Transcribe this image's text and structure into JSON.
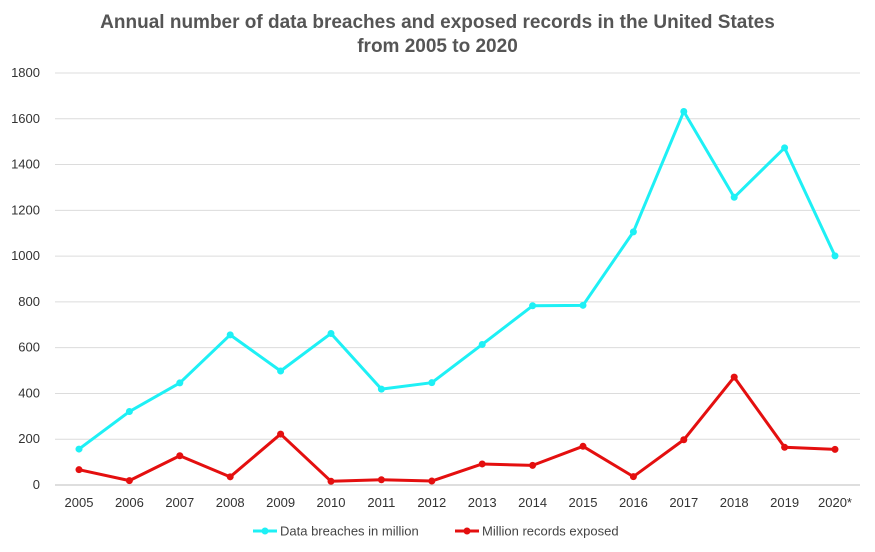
{
  "chart_data": {
    "type": "line",
    "title_line1": "Annual number of data breaches and exposed records in the United States",
    "title_line2": "from 2005 to 2020",
    "xlabel": "",
    "ylabel": "",
    "categories": [
      "2005",
      "2006",
      "2007",
      "2008",
      "2009",
      "2010",
      "2011",
      "2012",
      "2013",
      "2014",
      "2015",
      "2016",
      "2017",
      "2018",
      "2019",
      "2020*"
    ],
    "ylim": [
      0,
      1800
    ],
    "yticks": [
      0,
      200,
      400,
      600,
      800,
      1000,
      1200,
      1400,
      1600,
      1800
    ],
    "grid": true,
    "legend_position": "bottom",
    "series": [
      {
        "name": "Data breaches in million",
        "color": "#1ef0f5",
        "values": [
          157,
          321,
          446,
          656,
          498,
          662,
          419,
          447,
          614,
          783,
          785,
          1106,
          1632,
          1257,
          1473,
          1001
        ]
      },
      {
        "name": "Million records exposed",
        "color": "#e40f0f",
        "values": [
          66.9,
          19.1,
          127.7,
          35.7,
          222.5,
          16.2,
          22.9,
          17.3,
          91.98,
          85.61,
          169.07,
          36.6,
          197.61,
          471.23,
          164.68,
          155.8
        ]
      }
    ]
  }
}
